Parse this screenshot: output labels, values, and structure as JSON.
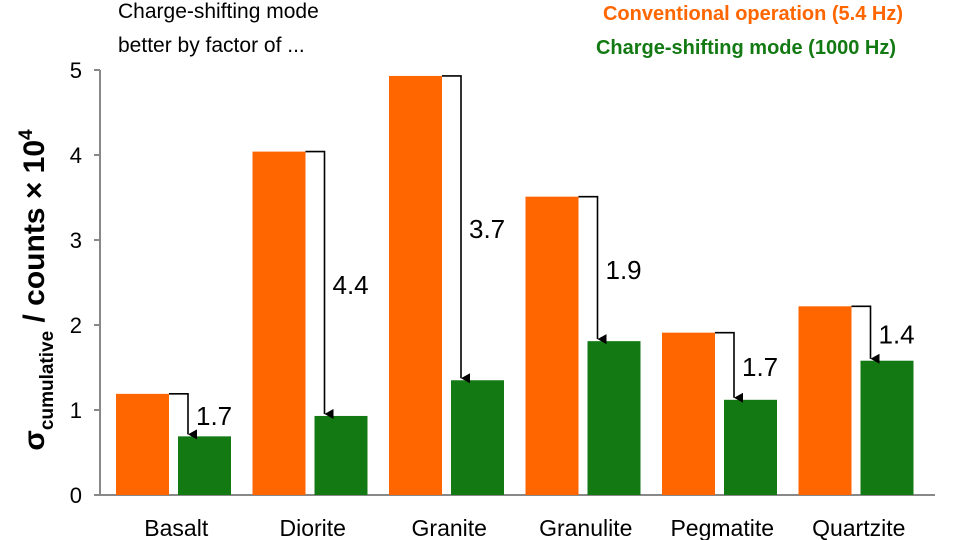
{
  "chart_data": {
    "type": "bar",
    "annotation": "Charge-shifting mode better by factor of ...",
    "ylabel": {
      "symbol": "σ",
      "subscript": "cumulative",
      "rest": " / counts × 10",
      "superscript": "4"
    },
    "ylim": [
      0,
      5
    ],
    "yticks": [
      "0",
      "1",
      "2",
      "3",
      "4",
      "5"
    ],
    "grid": false,
    "legend_position": "top-right",
    "categories": [
      "Basalt",
      "Diorite",
      "Granite",
      "Granulite",
      "Pegmatite",
      "Quartzite"
    ],
    "series": [
      {
        "name": "Conventional operation (5.4 Hz)",
        "color": "#ff6600",
        "values": [
          1.19,
          4.04,
          4.93,
          3.51,
          1.91,
          2.22
        ]
      },
      {
        "name": "Charge-shifting mode (1000 Hz)",
        "color": "#137a13",
        "values": [
          0.69,
          0.93,
          1.35,
          1.81,
          1.12,
          1.58
        ]
      }
    ],
    "factors": [
      "1.7",
      "4.4",
      "3.7",
      "1.9",
      "1.7",
      "1.4"
    ]
  }
}
